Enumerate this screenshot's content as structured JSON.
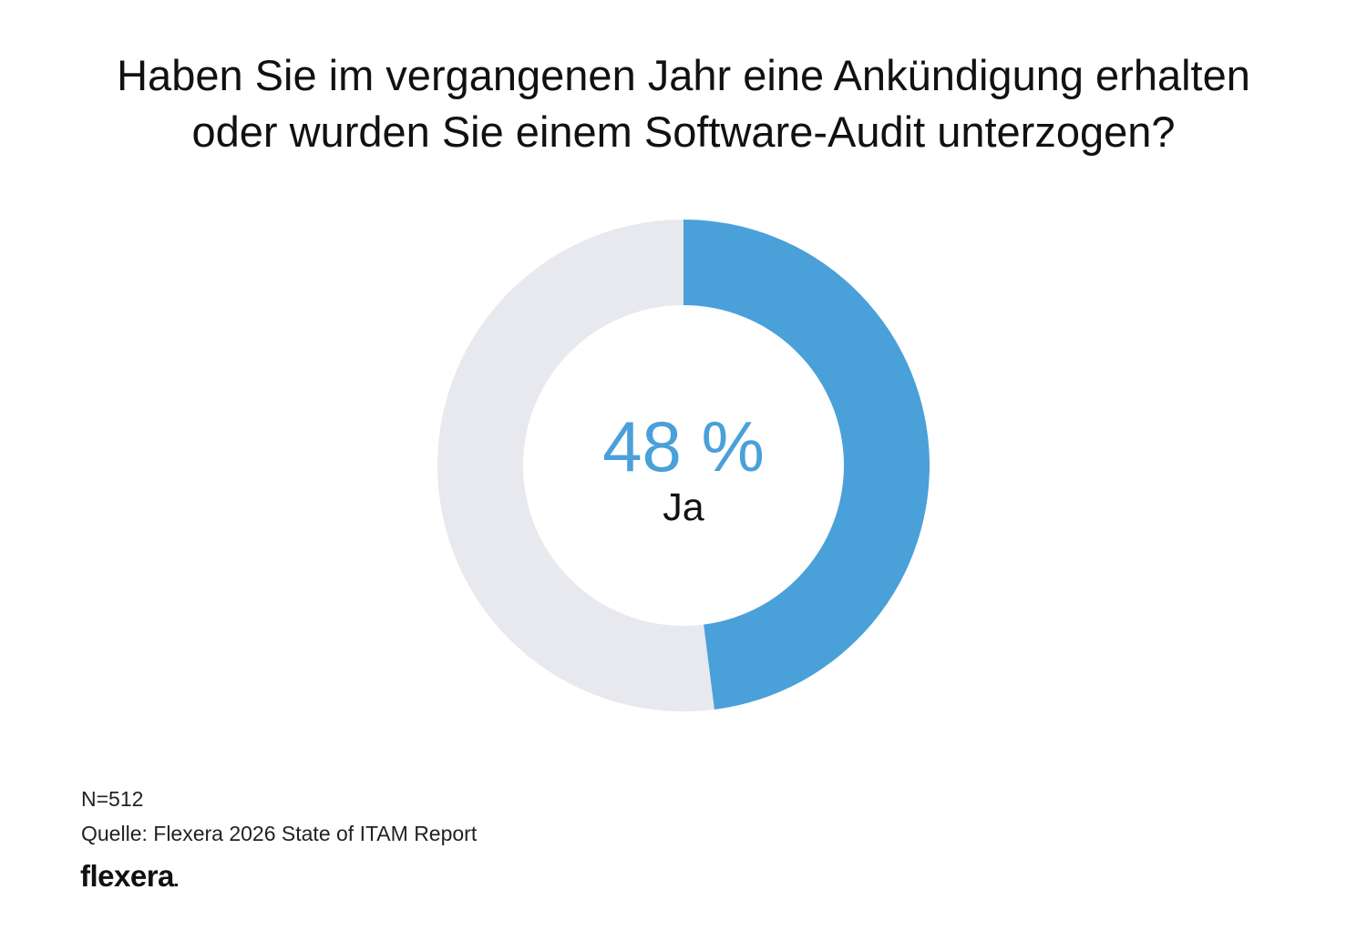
{
  "chart_data": {
    "type": "pie",
    "title_lines": [
      "Haben Sie im vergangenen Jahr eine Ankündigung erhalten",
      "oder wurden Sie einem Software-Audit unterzogen?"
    ],
    "center_value": "48 %",
    "center_label": "Ja",
    "slices": [
      {
        "label": "Ja",
        "value": 48,
        "color": "#4aa0d9"
      },
      {
        "label": "",
        "value": 52,
        "color": "#e8e9ee"
      }
    ]
  },
  "footer": {
    "n": "N=512",
    "source": "Quelle: Flexera 2026 State of ITAM Report",
    "logo": "flexera"
  },
  "colors": {
    "accent": "#4aa0d9",
    "track": "#e8e9ee",
    "text": "#111111"
  }
}
